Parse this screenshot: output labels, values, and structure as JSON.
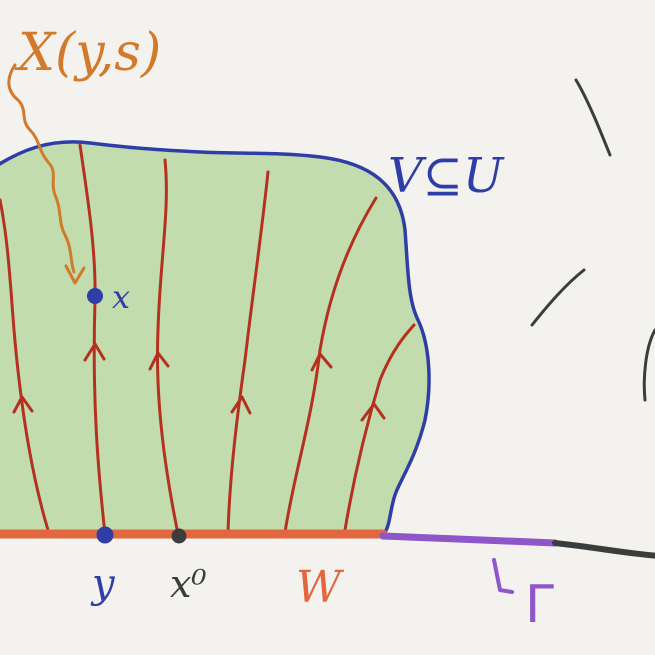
{
  "labels": {
    "flow_map": "X(y,s)",
    "region": "V⊆U",
    "point_x": "x",
    "point_y": "y",
    "point_x0": "x⁰",
    "segment_w": "W",
    "curve_gamma": "Γ"
  },
  "colors": {
    "background": "#f4f2ee",
    "region_fill": "#c2dcae",
    "region_outline": "#2f3ea6",
    "flow_lines": "#b5311f",
    "segment_w": "#e2673f",
    "curve_gamma_purple": "#8e56c8",
    "curve_gamma_dark": "#3a3d3e",
    "flow_map_label": "#d27a2b",
    "point_labels": "#2f3ea6",
    "dark_marks": "#3a3d3e"
  }
}
